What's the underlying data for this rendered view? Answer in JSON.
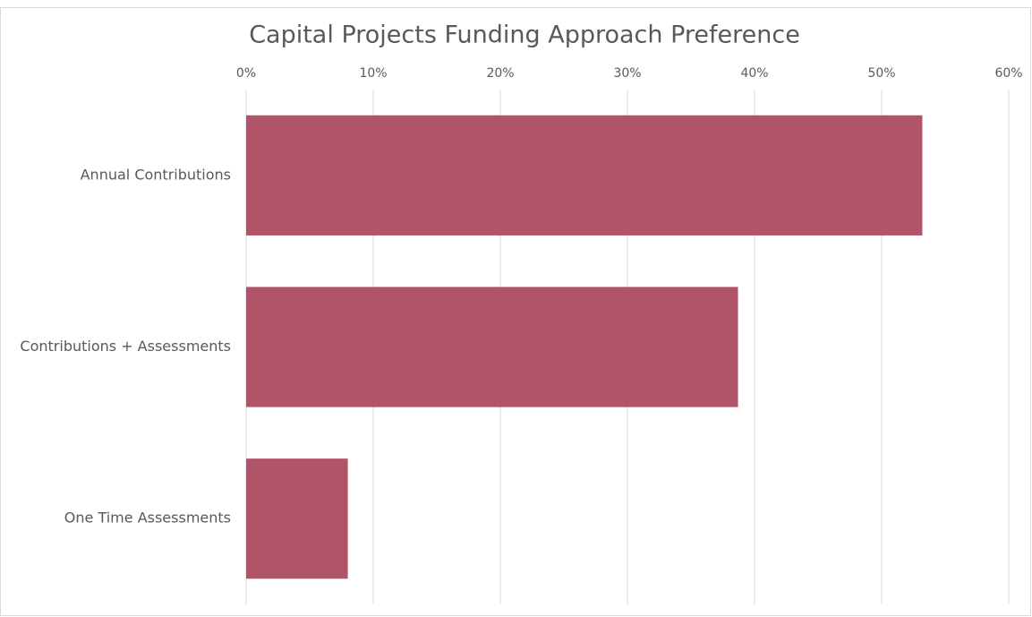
{
  "chart_data": {
    "type": "bar",
    "orientation": "horizontal",
    "title": "Capital Projects Funding Approach Preference",
    "categories": [
      "Annual Contributions",
      "Contributions + Assessments",
      "One Time Assessments"
    ],
    "values": [
      53.2,
      38.7,
      8.0
    ],
    "color": "#b1546a",
    "xlim": [
      0,
      60
    ],
    "xticks": [
      {
        "value": 0,
        "label": "0%"
      },
      {
        "value": 10,
        "label": "10%"
      },
      {
        "value": 20,
        "label": "20%"
      },
      {
        "value": 30,
        "label": "30%"
      },
      {
        "value": 40,
        "label": "40%"
      },
      {
        "value": 50,
        "label": "50%"
      },
      {
        "value": 60,
        "label": "60%"
      }
    ],
    "grid": true
  }
}
